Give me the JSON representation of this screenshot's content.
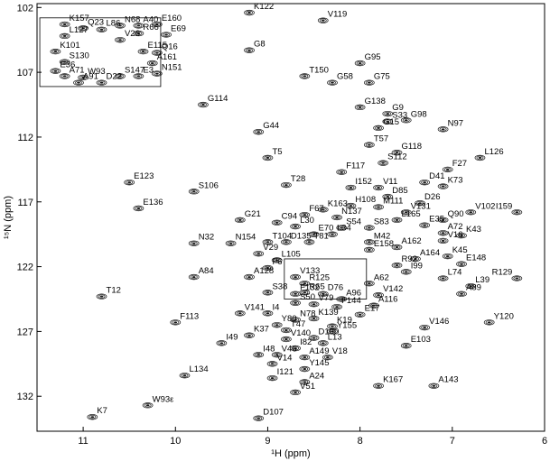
{
  "chart_data": {
    "type": "scatter",
    "title": "",
    "xlabel": "¹H (ppm)",
    "ylabel": "¹⁵N (ppm)",
    "xlim": [
      11.5,
      6.0
    ],
    "ylim": [
      101.7,
      134.7
    ],
    "x_ticks": [
      11,
      10,
      9,
      8,
      7,
      6
    ],
    "y_ticks": [
      102,
      107,
      112,
      117,
      122,
      127,
      132
    ],
    "grid": false,
    "legend": "none",
    "colors": {
      "peak": "#1a1a1a",
      "frame": "#000000"
    },
    "peaks": [
      {
        "label": "K157",
        "x": 11.2,
        "y": 103.3
      },
      {
        "label": "Q23",
        "x": 11.0,
        "y": 103.6
      },
      {
        "label": "L86",
        "x": 10.8,
        "y": 103.7
      },
      {
        "label": "N68",
        "x": 10.6,
        "y": 103.4
      },
      {
        "label": "A40",
        "x": 10.4,
        "y": 103.4
      },
      {
        "label": "E160",
        "x": 10.2,
        "y": 103.3
      },
      {
        "label": "L127",
        "x": 11.2,
        "y": 104.2
      },
      {
        "label": "R66",
        "x": 10.4,
        "y": 104.0
      },
      {
        "label": "E69",
        "x": 10.1,
        "y": 104.1
      },
      {
        "label": "V26",
        "x": 10.6,
        "y": 104.5
      },
      {
        "label": "K101",
        "x": 11.3,
        "y": 105.4
      },
      {
        "label": "E115",
        "x": 10.35,
        "y": 105.4
      },
      {
        "label": "Q16",
        "x": 10.2,
        "y": 105.5
      },
      {
        "label": "S130",
        "x": 11.2,
        "y": 106.2
      },
      {
        "label": "A161",
        "x": 10.25,
        "y": 106.3
      },
      {
        "label": "E36",
        "x": 11.3,
        "y": 106.9
      },
      {
        "label": "N151",
        "x": 10.2,
        "y": 107.1
      },
      {
        "label": "A71",
        "x": 11.2,
        "y": 107.3
      },
      {
        "label": "W93",
        "x": 11.0,
        "y": 107.4
      },
      {
        "label": "S147",
        "x": 10.6,
        "y": 107.3
      },
      {
        "label": "E3",
        "x": 10.4,
        "y": 107.3
      },
      {
        "label": "A91",
        "x": 11.05,
        "y": 107.8
      },
      {
        "label": "D22",
        "x": 10.8,
        "y": 107.8
      },
      {
        "label": "K122",
        "x": 9.2,
        "y": 102.4
      },
      {
        "label": "V119",
        "x": 8.4,
        "y": 103.0
      },
      {
        "label": "G8",
        "x": 9.2,
        "y": 105.3
      },
      {
        "label": "G95",
        "x": 8.0,
        "y": 106.3
      },
      {
        "label": "T150",
        "x": 8.6,
        "y": 107.3
      },
      {
        "label": "G58",
        "x": 8.3,
        "y": 107.8
      },
      {
        "label": "G75",
        "x": 7.9,
        "y": 107.8
      },
      {
        "label": "G114",
        "x": 9.7,
        "y": 109.5
      },
      {
        "label": "G138",
        "x": 8.0,
        "y": 109.7
      },
      {
        "label": "G9",
        "x": 7.7,
        "y": 110.2
      },
      {
        "label": "G98",
        "x": 7.5,
        "y": 110.7
      },
      {
        "label": "S33",
        "x": 7.7,
        "y": 110.8
      },
      {
        "label": "G15",
        "x": 7.8,
        "y": 111.3
      },
      {
        "label": "N97",
        "x": 7.1,
        "y": 111.4
      },
      {
        "label": "G44",
        "x": 9.1,
        "y": 111.6
      },
      {
        "label": "T57",
        "x": 7.9,
        "y": 112.6
      },
      {
        "label": "G118",
        "x": 7.6,
        "y": 113.2
      },
      {
        "label": "L126",
        "x": 6.7,
        "y": 113.6
      },
      {
        "label": "T5",
        "x": 9.0,
        "y": 113.6
      },
      {
        "label": "S112",
        "x": 7.75,
        "y": 114.0
      },
      {
        "label": "F27",
        "x": 7.05,
        "y": 114.5
      },
      {
        "label": "F117",
        "x": 8.2,
        "y": 114.7
      },
      {
        "label": "E123",
        "x": 10.5,
        "y": 115.5
      },
      {
        "label": "T28",
        "x": 8.8,
        "y": 115.7
      },
      {
        "label": "D41",
        "x": 7.3,
        "y": 115.5
      },
      {
        "label": "K73",
        "x": 7.1,
        "y": 115.8
      },
      {
        "label": "I152",
        "x": 8.1,
        "y": 115.9
      },
      {
        "label": "V11",
        "x": 7.8,
        "y": 115.9
      },
      {
        "label": "S106",
        "x": 9.8,
        "y": 116.2
      },
      {
        "label": "D85",
        "x": 7.7,
        "y": 116.6
      },
      {
        "label": "D26",
        "x": 7.35,
        "y": 117.1
      },
      {
        "label": "E136",
        "x": 10.4,
        "y": 117.5
      },
      {
        "label": "H108",
        "x": 8.1,
        "y": 117.3
      },
      {
        "label": "M111",
        "x": 7.8,
        "y": 117.4
      },
      {
        "label": "K163",
        "x": 8.4,
        "y": 117.6
      },
      {
        "label": "V131",
        "x": 7.5,
        "y": 117.8
      },
      {
        "label": "V102",
        "x": 6.8,
        "y": 117.8
      },
      {
        "label": "I159",
        "x": 6.3,
        "y": 117.8
      },
      {
        "label": "F67",
        "x": 8.6,
        "y": 118.0
      },
      {
        "label": "N137",
        "x": 8.25,
        "y": 118.2
      },
      {
        "label": "L165",
        "x": 7.6,
        "y": 118.4
      },
      {
        "label": "Q90",
        "x": 7.1,
        "y": 118.4
      },
      {
        "label": "G21",
        "x": 9.3,
        "y": 118.4
      },
      {
        "label": "C94",
        "x": 8.9,
        "y": 118.6
      },
      {
        "label": "E35",
        "x": 7.3,
        "y": 118.8
      },
      {
        "label": "L30",
        "x": 8.7,
        "y": 118.9
      },
      {
        "label": "S54",
        "x": 8.2,
        "y": 119.0
      },
      {
        "label": "S83",
        "x": 7.9,
        "y": 119.0
      },
      {
        "label": "A72",
        "x": 7.1,
        "y": 119.4
      },
      {
        "label": "E70",
        "x": 8.5,
        "y": 119.5
      },
      {
        "label": "L34",
        "x": 8.3,
        "y": 119.5
      },
      {
        "label": "K43",
        "x": 6.9,
        "y": 119.6
      },
      {
        "label": "V16",
        "x": 7.1,
        "y": 120.0
      },
      {
        "label": "T104",
        "x": 9.0,
        "y": 120.1
      },
      {
        "label": "D135",
        "x": 8.8,
        "y": 120.1
      },
      {
        "label": "T81",
        "x": 8.55,
        "y": 120.1
      },
      {
        "label": "M42",
        "x": 7.9,
        "y": 120.1
      },
      {
        "label": "N32",
        "x": 9.8,
        "y": 120.2
      },
      {
        "label": "N154",
        "x": 9.4,
        "y": 120.2
      },
      {
        "label": "A162",
        "x": 7.6,
        "y": 120.5
      },
      {
        "label": "E158",
        "x": 7.9,
        "y": 120.7
      },
      {
        "label": "V29",
        "x": 9.1,
        "y": 121.0
      },
      {
        "label": "L105",
        "x": 8.9,
        "y": 121.5
      },
      {
        "label": "A164",
        "x": 7.4,
        "y": 121.4
      },
      {
        "label": "K45",
        "x": 7.05,
        "y": 121.2
      },
      {
        "label": "E148",
        "x": 6.9,
        "y": 121.8
      },
      {
        "label": "F6",
        "x": 9.0,
        "y": 122.1
      },
      {
        "label": "R92",
        "x": 7.6,
        "y": 121.9
      },
      {
        "label": "I99",
        "x": 7.5,
        "y": 122.4
      },
      {
        "label": "A128",
        "x": 9.2,
        "y": 122.8
      },
      {
        "label": "V133",
        "x": 8.7,
        "y": 122.8
      },
      {
        "label": "A84",
        "x": 9.8,
        "y": 122.8
      },
      {
        "label": "L74",
        "x": 7.1,
        "y": 122.9
      },
      {
        "label": "R129",
        "x": 6.3,
        "y": 122.9
      },
      {
        "label": "R125",
        "x": 8.6,
        "y": 123.3
      },
      {
        "label": "A62",
        "x": 7.9,
        "y": 123.3
      },
      {
        "label": "L39",
        "x": 6.8,
        "y": 123.5
      },
      {
        "label": "S38",
        "x": 9.0,
        "y": 124.0
      },
      {
        "label": "F132",
        "x": 8.7,
        "y": 124.1
      },
      {
        "label": "R65",
        "x": 8.6,
        "y": 124.0
      },
      {
        "label": "D76",
        "x": 8.4,
        "y": 124.1
      },
      {
        "label": "V142",
        "x": 7.8,
        "y": 124.2
      },
      {
        "label": "A89",
        "x": 6.9,
        "y": 124.1
      },
      {
        "label": "T12",
        "x": 10.8,
        "y": 124.3
      },
      {
        "label": "A96",
        "x": 8.2,
        "y": 124.5
      },
      {
        "label": "S50",
        "x": 8.7,
        "y": 124.8
      },
      {
        "label": "V79",
        "x": 8.5,
        "y": 124.9
      },
      {
        "label": "F144",
        "x": 8.25,
        "y": 125.1
      },
      {
        "label": "A116",
        "x": 7.85,
        "y": 125.0
      },
      {
        "label": "I4",
        "x": 9.0,
        "y": 125.6
      },
      {
        "label": "V141",
        "x": 9.3,
        "y": 125.6
      },
      {
        "label": "E17",
        "x": 8.0,
        "y": 125.7
      },
      {
        "label": "K139",
        "x": 8.5,
        "y": 126.0
      },
      {
        "label": "N78",
        "x": 8.7,
        "y": 126.1
      },
      {
        "label": "F113",
        "x": 10.0,
        "y": 126.3
      },
      {
        "label": "V146",
        "x": 7.3,
        "y": 126.7
      },
      {
        "label": "Y120",
        "x": 6.6,
        "y": 126.3
      },
      {
        "label": "Y80",
        "x": 8.9,
        "y": 126.5
      },
      {
        "label": "K19",
        "x": 8.3,
        "y": 126.6
      },
      {
        "label": "T47",
        "x": 8.8,
        "y": 126.9
      },
      {
        "label": "Y155",
        "x": 8.3,
        "y": 127.0
      },
      {
        "label": "K37",
        "x": 9.2,
        "y": 127.3
      },
      {
        "label": "D100",
        "x": 8.5,
        "y": 127.5
      },
      {
        "label": "V140",
        "x": 8.8,
        "y": 127.6
      },
      {
        "label": "I49",
        "x": 9.5,
        "y": 127.9
      },
      {
        "label": "L13",
        "x": 8.4,
        "y": 127.9
      },
      {
        "label": "E103",
        "x": 7.5,
        "y": 128.1
      },
      {
        "label": "I82",
        "x": 8.7,
        "y": 128.3
      },
      {
        "label": "I48",
        "x": 9.1,
        "y": 128.8
      },
      {
        "label": "V46",
        "x": 8.9,
        "y": 128.8
      },
      {
        "label": "A149",
        "x": 8.6,
        "y": 129.0
      },
      {
        "label": "V18",
        "x": 8.35,
        "y": 129.0
      },
      {
        "label": "V14",
        "x": 8.95,
        "y": 129.5
      },
      {
        "label": "Y145",
        "x": 8.6,
        "y": 129.9
      },
      {
        "label": "L134",
        "x": 9.9,
        "y": 130.4
      },
      {
        "label": "I121",
        "x": 8.95,
        "y": 130.6
      },
      {
        "label": "A24",
        "x": 8.6,
        "y": 130.9
      },
      {
        "label": "K167",
        "x": 7.8,
        "y": 131.2
      },
      {
        "label": "A143",
        "x": 7.2,
        "y": 131.2
      },
      {
        "label": "V51",
        "x": 8.7,
        "y": 131.7
      },
      {
        "label": "W93ε",
        "x": 10.3,
        "y": 132.7
      },
      {
        "label": "K7",
        "x": 10.9,
        "y": 133.6
      },
      {
        "label": "D107",
        "x": 9.1,
        "y": 133.7
      }
    ],
    "insets": [
      {
        "x_range": [
          11.47,
          10.16
        ],
        "y_range": [
          102.8,
          108.1
        ]
      },
      {
        "x_range": [
          8.82,
          7.93
        ],
        "y_range": [
          121.4,
          124.5
        ]
      }
    ]
  }
}
